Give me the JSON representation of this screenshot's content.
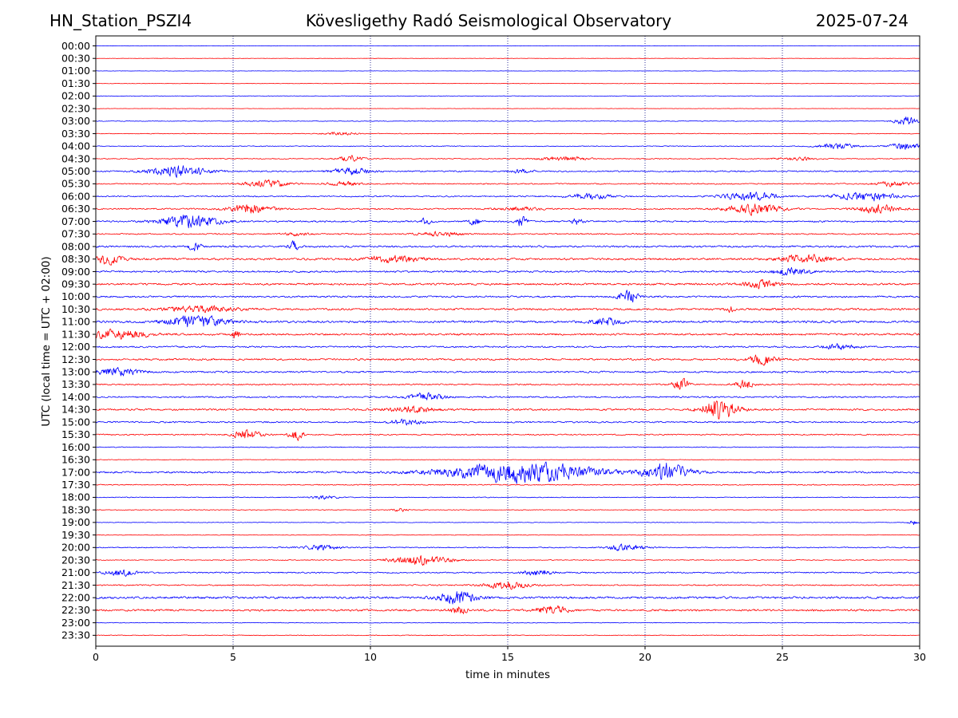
{
  "header": {
    "station": "HN_Station_PSZI4",
    "observatory": "Kövesligethy Radó Seismological Observatory",
    "date": "2025-07-24"
  },
  "chart_data": {
    "type": "line",
    "chart_kind": "helicorder",
    "xlabel": "time in minutes",
    "ylabel": "UTC (local time = UTC + 02:00)",
    "xlim": [
      0,
      30
    ],
    "x_ticks": [
      0,
      5,
      10,
      15,
      20,
      25,
      30
    ],
    "x_tick_labels": [
      "0",
      "5",
      "10",
      "15",
      "20",
      "25",
      "30"
    ],
    "vertical_grid": "dotted, at 5-minute ticks",
    "colors": {
      "even_hour_trace": "#0000ff",
      "half_hour_trace": "#ff0000",
      "gridline": "#000080"
    },
    "trace_labels": [
      "00:00",
      "00:30",
      "01:00",
      "01:30",
      "02:00",
      "02:30",
      "03:00",
      "03:30",
      "04:00",
      "04:30",
      "05:00",
      "05:30",
      "06:00",
      "06:30",
      "07:00",
      "07:30",
      "08:00",
      "08:30",
      "09:00",
      "09:30",
      "10:00",
      "10:30",
      "11:00",
      "11:30",
      "12:00",
      "12:30",
      "13:00",
      "13:30",
      "14:00",
      "14:30",
      "15:00",
      "15:30",
      "16:00",
      "16:30",
      "17:00",
      "17:30",
      "18:00",
      "18:30",
      "19:00",
      "19:30",
      "20:00",
      "20:30",
      "21:00",
      "21:30",
      "22:00",
      "22:30",
      "23:00",
      "23:30"
    ],
    "trace_noise": [
      0.3,
      0.3,
      0.3,
      0.4,
      0.5,
      0.3,
      0.6,
      0.6,
      0.7,
      0.8,
      1.2,
      1.0,
      1.1,
      1.2,
      1.4,
      1.1,
      1.6,
      1.8,
      1.6,
      1.7,
      1.5,
      1.8,
      1.9,
      1.7,
      1.4,
      1.6,
      1.5,
      1.2,
      1.3,
      1.6,
      1.3,
      1.1,
      0.7,
      0.5,
      1.6,
      0.9,
      0.7,
      0.6,
      0.5,
      0.6,
      0.9,
      0.7,
      1.2,
      1.1,
      1.9,
      1.7,
      0.6,
      0.6
    ],
    "events": [
      {
        "trace": 6,
        "minute": 29.5,
        "amplitude": 8,
        "duration": 0.6
      },
      {
        "trace": 7,
        "minute": 8.9,
        "amplitude": 3,
        "duration": 0.8
      },
      {
        "trace": 8,
        "minute": 27.0,
        "amplitude": 5,
        "duration": 1.0
      },
      {
        "trace": 8,
        "minute": 29.5,
        "amplitude": 7,
        "duration": 0.8
      },
      {
        "trace": 9,
        "minute": 9.3,
        "amplitude": 6,
        "duration": 0.6
      },
      {
        "trace": 9,
        "minute": 17.0,
        "amplitude": 4,
        "duration": 1.2
      },
      {
        "trace": 9,
        "minute": 25.5,
        "amplitude": 3,
        "duration": 1.0
      },
      {
        "trace": 10,
        "minute": 3.0,
        "amplitude": 9,
        "duration": 1.6
      },
      {
        "trace": 10,
        "minute": 9.3,
        "amplitude": 7,
        "duration": 1.0
      },
      {
        "trace": 10,
        "minute": 15.5,
        "amplitude": 3,
        "duration": 0.6
      },
      {
        "trace": 11,
        "minute": 6.3,
        "amplitude": 6,
        "duration": 1.2
      },
      {
        "trace": 11,
        "minute": 9.0,
        "amplitude": 4,
        "duration": 0.8
      },
      {
        "trace": 11,
        "minute": 29.0,
        "amplitude": 4,
        "duration": 1.0
      },
      {
        "trace": 12,
        "minute": 18.0,
        "amplitude": 5,
        "duration": 1.2
      },
      {
        "trace": 12,
        "minute": 23.8,
        "amplitude": 8,
        "duration": 1.4
      },
      {
        "trace": 12,
        "minute": 28.0,
        "amplitude": 8,
        "duration": 1.6
      },
      {
        "trace": 13,
        "minute": 5.6,
        "amplitude": 8,
        "duration": 1.2
      },
      {
        "trace": 13,
        "minute": 15.5,
        "amplitude": 3,
        "duration": 1.2
      },
      {
        "trace": 13,
        "minute": 24.0,
        "amplitude": 9,
        "duration": 1.4
      },
      {
        "trace": 13,
        "minute": 28.5,
        "amplitude": 7,
        "duration": 1.2
      },
      {
        "trace": 14,
        "minute": 3.4,
        "amplitude": 11,
        "duration": 1.6
      },
      {
        "trace": 14,
        "minute": 12.0,
        "amplitude": 5,
        "duration": 0.3
      },
      {
        "trace": 14,
        "minute": 13.8,
        "amplitude": 6,
        "duration": 0.3
      },
      {
        "trace": 14,
        "minute": 15.5,
        "amplitude": 9,
        "duration": 0.3
      },
      {
        "trace": 14,
        "minute": 17.5,
        "amplitude": 6,
        "duration": 0.3
      },
      {
        "trace": 15,
        "minute": 7.3,
        "amplitude": 3,
        "duration": 0.6
      },
      {
        "trace": 15,
        "minute": 12.5,
        "amplitude": 4,
        "duration": 1.2
      },
      {
        "trace": 16,
        "minute": 3.6,
        "amplitude": 8,
        "duration": 0.3
      },
      {
        "trace": 16,
        "minute": 7.2,
        "amplitude": 8,
        "duration": 0.3
      },
      {
        "trace": 17,
        "minute": 0.4,
        "amplitude": 8,
        "duration": 0.8
      },
      {
        "trace": 17,
        "minute": 10.8,
        "amplitude": 6,
        "duration": 1.4
      },
      {
        "trace": 17,
        "minute": 25.8,
        "amplitude": 9,
        "duration": 1.2
      },
      {
        "trace": 18,
        "minute": 25.3,
        "amplitude": 6,
        "duration": 1.0
      },
      {
        "trace": 19,
        "minute": 24.2,
        "amplitude": 7,
        "duration": 0.8
      },
      {
        "trace": 20,
        "minute": 19.4,
        "amplitude": 10,
        "duration": 0.5
      },
      {
        "trace": 21,
        "minute": 3.8,
        "amplitude": 5,
        "duration": 1.8
      },
      {
        "trace": 21,
        "minute": 23.1,
        "amplitude": 6,
        "duration": 0.2
      },
      {
        "trace": 22,
        "minute": 3.6,
        "amplitude": 10,
        "duration": 1.6
      },
      {
        "trace": 22,
        "minute": 18.6,
        "amplitude": 6,
        "duration": 0.8
      },
      {
        "trace": 23,
        "minute": 0.8,
        "amplitude": 8,
        "duration": 1.6
      },
      {
        "trace": 23,
        "minute": 5.1,
        "amplitude": 7,
        "duration": 0.2
      },
      {
        "trace": 24,
        "minute": 27.1,
        "amplitude": 5,
        "duration": 0.8
      },
      {
        "trace": 25,
        "minute": 24.3,
        "amplitude": 8,
        "duration": 0.8
      },
      {
        "trace": 26,
        "minute": 0.8,
        "amplitude": 6,
        "duration": 1.2
      },
      {
        "trace": 27,
        "minute": 21.3,
        "amplitude": 10,
        "duration": 0.4
      },
      {
        "trace": 27,
        "minute": 23.6,
        "amplitude": 8,
        "duration": 0.5
      },
      {
        "trace": 28,
        "minute": 12.0,
        "amplitude": 6,
        "duration": 1.0
      },
      {
        "trace": 29,
        "minute": 22.7,
        "amplitude": 16,
        "duration": 1.0
      },
      {
        "trace": 29,
        "minute": 11.5,
        "amplitude": 5,
        "duration": 1.4
      },
      {
        "trace": 30,
        "minute": 11.3,
        "amplitude": 5,
        "duration": 0.8
      },
      {
        "trace": 31,
        "minute": 5.5,
        "amplitude": 8,
        "duration": 0.8
      },
      {
        "trace": 31,
        "minute": 7.3,
        "amplitude": 9,
        "duration": 0.4
      },
      {
        "trace": 34,
        "minute": 15.5,
        "amplitude": 17,
        "duration": 4.0
      },
      {
        "trace": 34,
        "minute": 20.8,
        "amplitude": 15,
        "duration": 1.2
      },
      {
        "trace": 36,
        "minute": 8.3,
        "amplitude": 3,
        "duration": 0.8
      },
      {
        "trace": 37,
        "minute": 11.1,
        "amplitude": 3,
        "duration": 0.4
      },
      {
        "trace": 38,
        "minute": 29.8,
        "amplitude": 5,
        "duration": 0.3
      },
      {
        "trace": 40,
        "minute": 8.2,
        "amplitude": 4,
        "duration": 1.0
      },
      {
        "trace": 40,
        "minute": 19.3,
        "amplitude": 6,
        "duration": 1.0
      },
      {
        "trace": 41,
        "minute": 11.8,
        "amplitude": 8,
        "duration": 1.6
      },
      {
        "trace": 42,
        "minute": 0.9,
        "amplitude": 6,
        "duration": 0.8
      },
      {
        "trace": 42,
        "minute": 16.1,
        "amplitude": 5,
        "duration": 0.8
      },
      {
        "trace": 43,
        "minute": 15.0,
        "amplitude": 6,
        "duration": 1.2
      },
      {
        "trace": 44,
        "minute": 13.2,
        "amplitude": 11,
        "duration": 1.0
      },
      {
        "trace": 45,
        "minute": 13.2,
        "amplitude": 8,
        "duration": 0.4
      },
      {
        "trace": 45,
        "minute": 16.6,
        "amplitude": 8,
        "duration": 0.8
      }
    ]
  }
}
